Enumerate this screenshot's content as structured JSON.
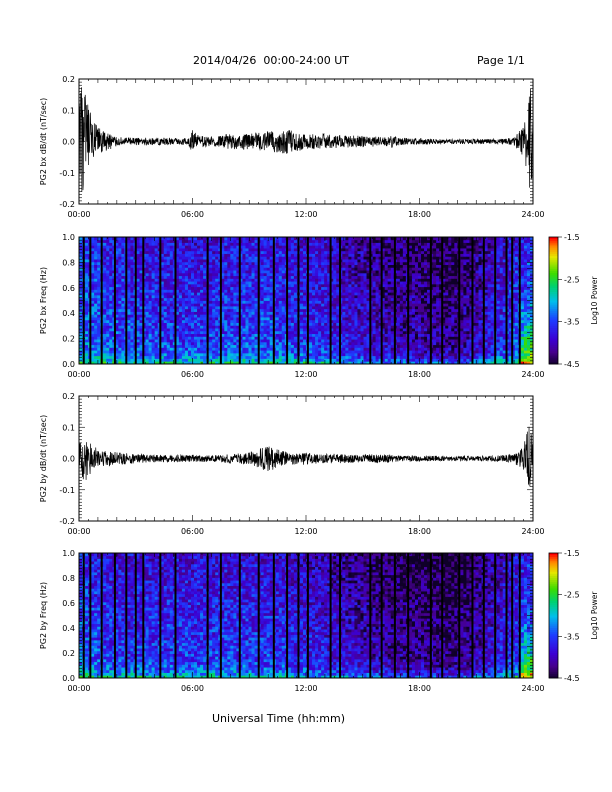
{
  "header": {
    "title": "2014/04/26  00:00-24:00 UT",
    "page": "Page 1/1"
  },
  "x_axis_title": "Universal Time (hh:mm)",
  "colorbar": {
    "label": "Log10 Power",
    "ticks": [
      "-1.5",
      "-2.5",
      "-3.5",
      "-4.5"
    ]
  },
  "chart_data": [
    {
      "type": "line",
      "ylabel": "PG2 bx dB/dt (nT/sec)",
      "xlim": [
        "00:00",
        "24:00"
      ],
      "ylim": [
        -0.2,
        0.2
      ],
      "x_ticks": [
        "00:00",
        "06:00",
        "12:00",
        "18:00",
        "24:00"
      ],
      "y_ticks": [
        "0.2",
        "0.1",
        "0.0",
        "-0.1",
        "-0.2"
      ],
      "envelope": {
        "x_hours": [
          0,
          0.2,
          0.5,
          0.8,
          1.2,
          1.6,
          2,
          3,
          4,
          5,
          5.8,
          6.0,
          6.3,
          7,
          8,
          9,
          9.5,
          10,
          11,
          12,
          13,
          14,
          15,
          16,
          16.6,
          17,
          18,
          19,
          20,
          21,
          22,
          23,
          23.5,
          23.7,
          23.85,
          24
        ],
        "amplitude": [
          0.15,
          0.2,
          0.11,
          0.06,
          0.04,
          0.03,
          0.015,
          0.012,
          0.012,
          0.012,
          0.014,
          0.04,
          0.02,
          0.015,
          0.025,
          0.025,
          0.03,
          0.035,
          0.04,
          0.025,
          0.025,
          0.02,
          0.018,
          0.015,
          0.018,
          0.012,
          0.01,
          0.008,
          0.008,
          0.008,
          0.008,
          0.012,
          0.05,
          0.1,
          0.2,
          0.08
        ]
      }
    },
    {
      "type": "heatmap",
      "ylabel": "PG2 bx Freq (Hz)",
      "xlim": [
        "00:00",
        "24:00"
      ],
      "ylim": [
        0.0,
        1.0
      ],
      "x_ticks": [
        "00:00",
        "06:00",
        "12:00",
        "18:00",
        "24:00"
      ],
      "y_ticks": [
        "1.0",
        "0.8",
        "0.6",
        "0.4",
        "0.2",
        "0.0"
      ],
      "colorbar_range": [
        -4.5,
        -1.5
      ],
      "mean_power": {
        "x_hours": [
          0,
          2,
          6,
          10,
          13,
          16,
          20,
          23.5,
          24
        ],
        "log10_power": [
          -3.2,
          -3.4,
          -3.5,
          -3.4,
          -3.6,
          -3.9,
          -4.1,
          -3.3,
          -3.2
        ]
      },
      "gap_times_hours": [
        0.25,
        0.6,
        1.2,
        1.9,
        2.5,
        3.0,
        3.4,
        4.3,
        5.1,
        6.8,
        7.5,
        8.5,
        9.5,
        10.3,
        11.0,
        11.6,
        12.1,
        13.3,
        13.8,
        15.4,
        16.0,
        16.7,
        17.4,
        18.6,
        19.2,
        20.1,
        20.8,
        21.4,
        22.0,
        22.6,
        22.9,
        23.3
      ]
    },
    {
      "type": "line",
      "ylabel": "PG2 by dB/dt (nT/sec)",
      "xlim": [
        "00:00",
        "24:00"
      ],
      "ylim": [
        -0.2,
        0.2
      ],
      "x_ticks": [
        "00:00",
        "06:00",
        "12:00",
        "18:00",
        "24:00"
      ],
      "y_ticks": [
        "0.2",
        "0.1",
        "0.0",
        "-0.1",
        "-0.2"
      ],
      "envelope": {
        "x_hours": [
          0,
          0.3,
          0.6,
          1,
          1.5,
          2,
          3,
          4,
          5,
          6,
          7,
          8,
          9,
          9.5,
          10,
          10.5,
          11,
          12,
          13,
          14,
          15,
          16,
          17,
          18,
          19,
          20,
          21,
          22,
          22.5,
          23,
          23.5,
          23.75,
          23.85,
          24
        ],
        "amplitude": [
          0.05,
          0.08,
          0.05,
          0.03,
          0.025,
          0.02,
          0.015,
          0.012,
          0.012,
          0.012,
          0.01,
          0.015,
          0.02,
          0.03,
          0.045,
          0.03,
          0.02,
          0.02,
          0.015,
          0.015,
          0.012,
          0.015,
          0.01,
          0.01,
          0.008,
          0.008,
          0.008,
          0.01,
          0.012,
          0.015,
          0.04,
          0.1,
          0.13,
          0.06
        ]
      }
    },
    {
      "type": "heatmap",
      "ylabel": "PG2 by Freq (Hz)",
      "xlim": [
        "00:00",
        "24:00"
      ],
      "ylim": [
        0.0,
        1.0
      ],
      "x_ticks": [
        "00:00",
        "06:00",
        "12:00",
        "18:00",
        "24:00"
      ],
      "y_ticks": [
        "1.0",
        "0.8",
        "0.6",
        "0.4",
        "0.2",
        "0.0"
      ],
      "colorbar_range": [
        -4.5,
        -1.5
      ],
      "mean_power": {
        "x_hours": [
          0,
          2,
          6,
          10,
          13,
          16,
          20,
          23.5,
          24
        ],
        "log10_power": [
          -3.3,
          -3.5,
          -3.5,
          -3.5,
          -3.7,
          -4.0,
          -4.2,
          -3.4,
          -3.3
        ]
      },
      "gap_times_hours": [
        0.25,
        0.6,
        1.2,
        1.9,
        2.5,
        3.0,
        3.4,
        4.3,
        5.1,
        6.8,
        7.5,
        8.5,
        9.5,
        10.3,
        11.0,
        11.6,
        12.1,
        13.3,
        13.8,
        15.4,
        16.0,
        16.7,
        17.4,
        18.6,
        19.2,
        20.1,
        20.8,
        21.4,
        22.0,
        22.6,
        22.9,
        23.3
      ]
    }
  ]
}
